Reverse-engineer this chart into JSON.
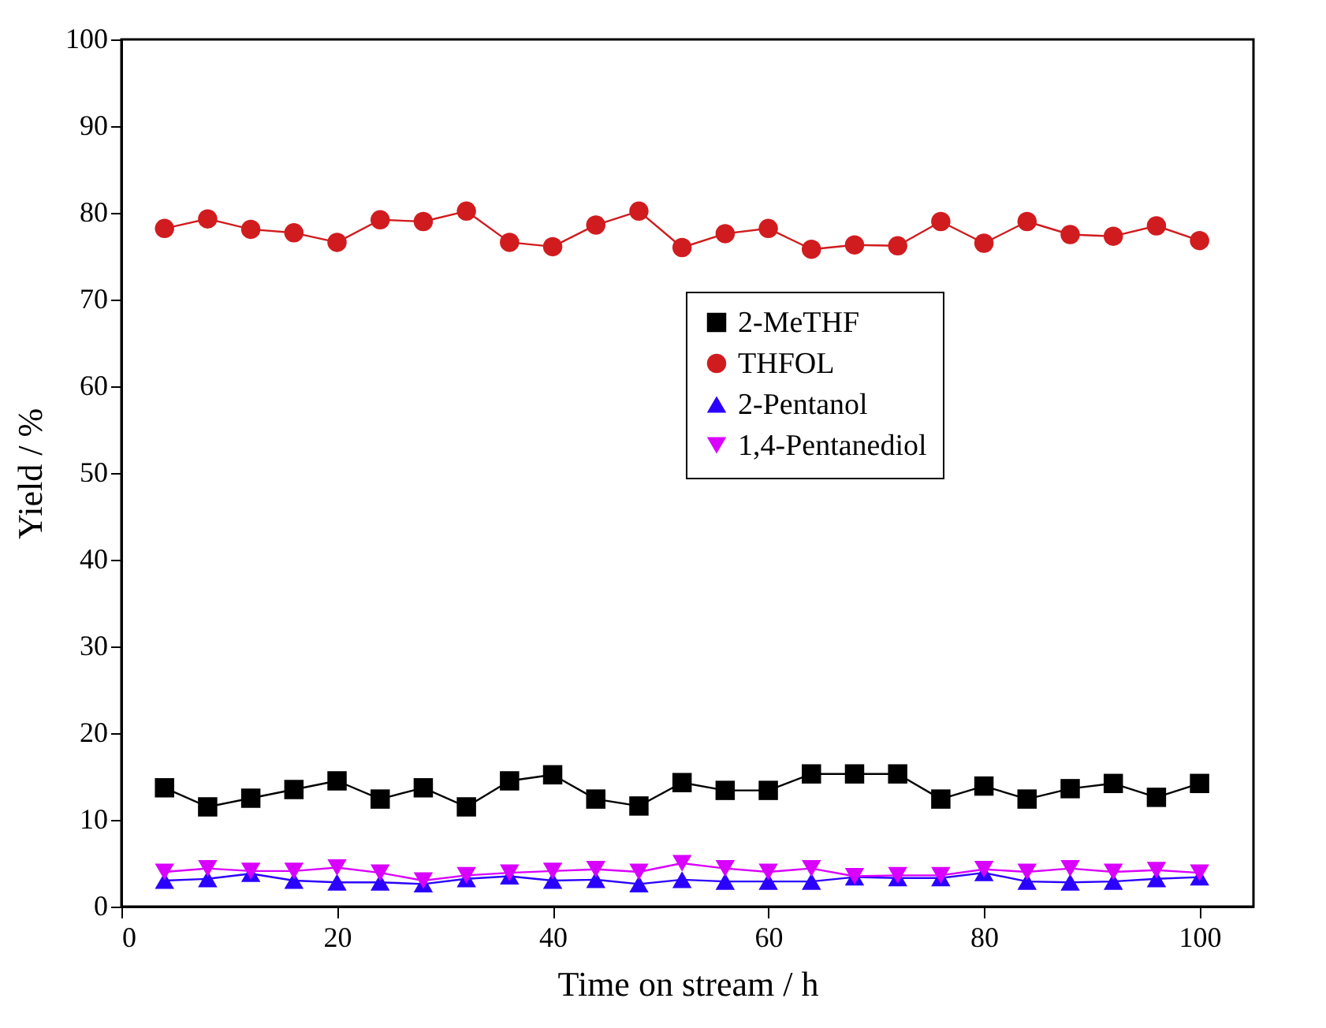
{
  "chart_data": {
    "type": "line",
    "xlabel": "Time on stream / h",
    "ylabel": "Yield / %",
    "x": [
      4,
      8,
      12,
      16,
      20,
      24,
      28,
      32,
      36,
      40,
      44,
      48,
      52,
      56,
      60,
      64,
      68,
      72,
      76,
      80,
      84,
      88,
      92,
      96,
      100
    ],
    "series": [
      {
        "name": "2-MeTHF",
        "color": "#000000",
        "marker": "square",
        "values": [
          13.7,
          11.5,
          12.5,
          13.5,
          14.5,
          12.4,
          13.7,
          11.5,
          14.5,
          15.2,
          12.4,
          11.6,
          14.3,
          13.4,
          13.4,
          15.3,
          15.3,
          15.3,
          12.4,
          13.9,
          12.4,
          13.6,
          14.2,
          12.6,
          14.2
        ]
      },
      {
        "name": "THFOL",
        "color": "#d01c1f",
        "marker": "circle",
        "values": [
          78.2,
          79.3,
          78.1,
          77.7,
          76.6,
          79.2,
          79.0,
          80.2,
          76.6,
          76.1,
          78.6,
          80.2,
          76.0,
          77.6,
          78.2,
          75.8,
          76.3,
          76.2,
          79.0,
          76.5,
          79.0,
          77.5,
          77.3,
          78.5,
          76.8
        ]
      },
      {
        "name": "2-Pentanol",
        "color": "#2a00ff",
        "marker": "triangle",
        "values": [
          3.0,
          3.2,
          3.8,
          3.0,
          2.8,
          2.8,
          2.6,
          3.2,
          3.5,
          3.0,
          3.1,
          2.6,
          3.1,
          2.9,
          2.9,
          2.9,
          3.4,
          3.3,
          3.3,
          3.9,
          2.9,
          2.8,
          2.9,
          3.2,
          3.4
        ]
      },
      {
        "name": "1,4-Pentanediol",
        "color": "#d900ff",
        "marker": "triangle-down",
        "values": [
          4.0,
          4.4,
          4.1,
          4.1,
          4.5,
          3.9,
          3.0,
          3.6,
          3.9,
          4.1,
          4.3,
          4.0,
          5.0,
          4.4,
          4.0,
          4.4,
          3.5,
          3.6,
          3.6,
          4.3,
          4.0,
          4.4,
          4.0,
          4.2,
          3.9
        ]
      }
    ],
    "xlim": [
      0,
      105
    ],
    "xticks": [
      0,
      20,
      40,
      60,
      80,
      100
    ],
    "ylim": [
      0,
      100
    ],
    "yticks": [
      0,
      10,
      20,
      30,
      40,
      50,
      60,
      70,
      80,
      90,
      100
    ],
    "legend": "right",
    "grid": false,
    "line_style": "solid"
  }
}
